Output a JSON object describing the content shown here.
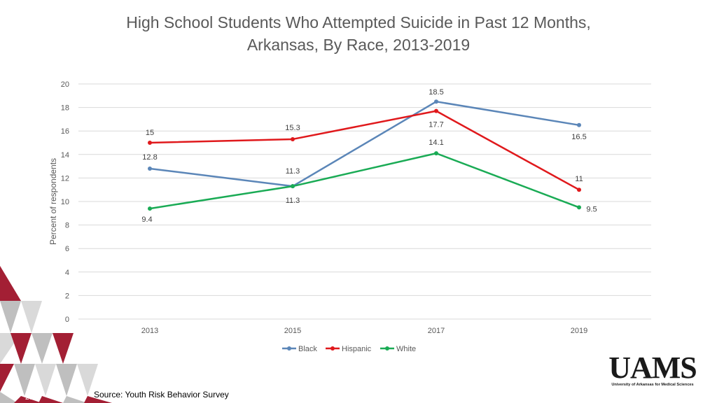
{
  "slide": {
    "title_line1": "High School Students Who Attempted Suicide in Past 12 Months,",
    "title_line2": "Arkansas, By Race, 2013-2019",
    "source": "Source: Youth Risk Behavior Survey",
    "slide_number": "26",
    "logo_text": "UAMS",
    "logo_subtext": "University of Arkansas for Medical Sciences",
    "decor_colors": {
      "red": "#a31f34",
      "gray": "#bfbfbf",
      "light_gray": "#d9d9d9"
    }
  },
  "chart_data": {
    "type": "line",
    "title": "High School Students Who Attempted Suicide in Past 12 Months, Arkansas, By Race, 2013-2019",
    "xlabel": "",
    "ylabel": "Percent of respondents",
    "categories": [
      "2013",
      "2015",
      "2017",
      "2019"
    ],
    "ylim": [
      0,
      20
    ],
    "yticks": [
      0,
      2,
      4,
      6,
      8,
      10,
      12,
      14,
      16,
      18,
      20
    ],
    "grid": true,
    "legend_position": "bottom",
    "series": [
      {
        "name": "Black",
        "color": "#5b86b8",
        "values": [
          12.8,
          11.3,
          18.5,
          16.5
        ],
        "labels": [
          "12.8",
          "11.3",
          "18.5",
          "16.5"
        ]
      },
      {
        "name": "Hispanic",
        "color": "#e0191c",
        "values": [
          15,
          15.3,
          17.7,
          11
        ],
        "labels": [
          "15",
          "15.3",
          "17.7",
          "11"
        ]
      },
      {
        "name": "White",
        "color": "#1aab55",
        "values": [
          9.4,
          11.3,
          14.1,
          9.5
        ],
        "labels": [
          "9.4",
          "11.3",
          "14.1",
          "9.5"
        ]
      }
    ]
  }
}
